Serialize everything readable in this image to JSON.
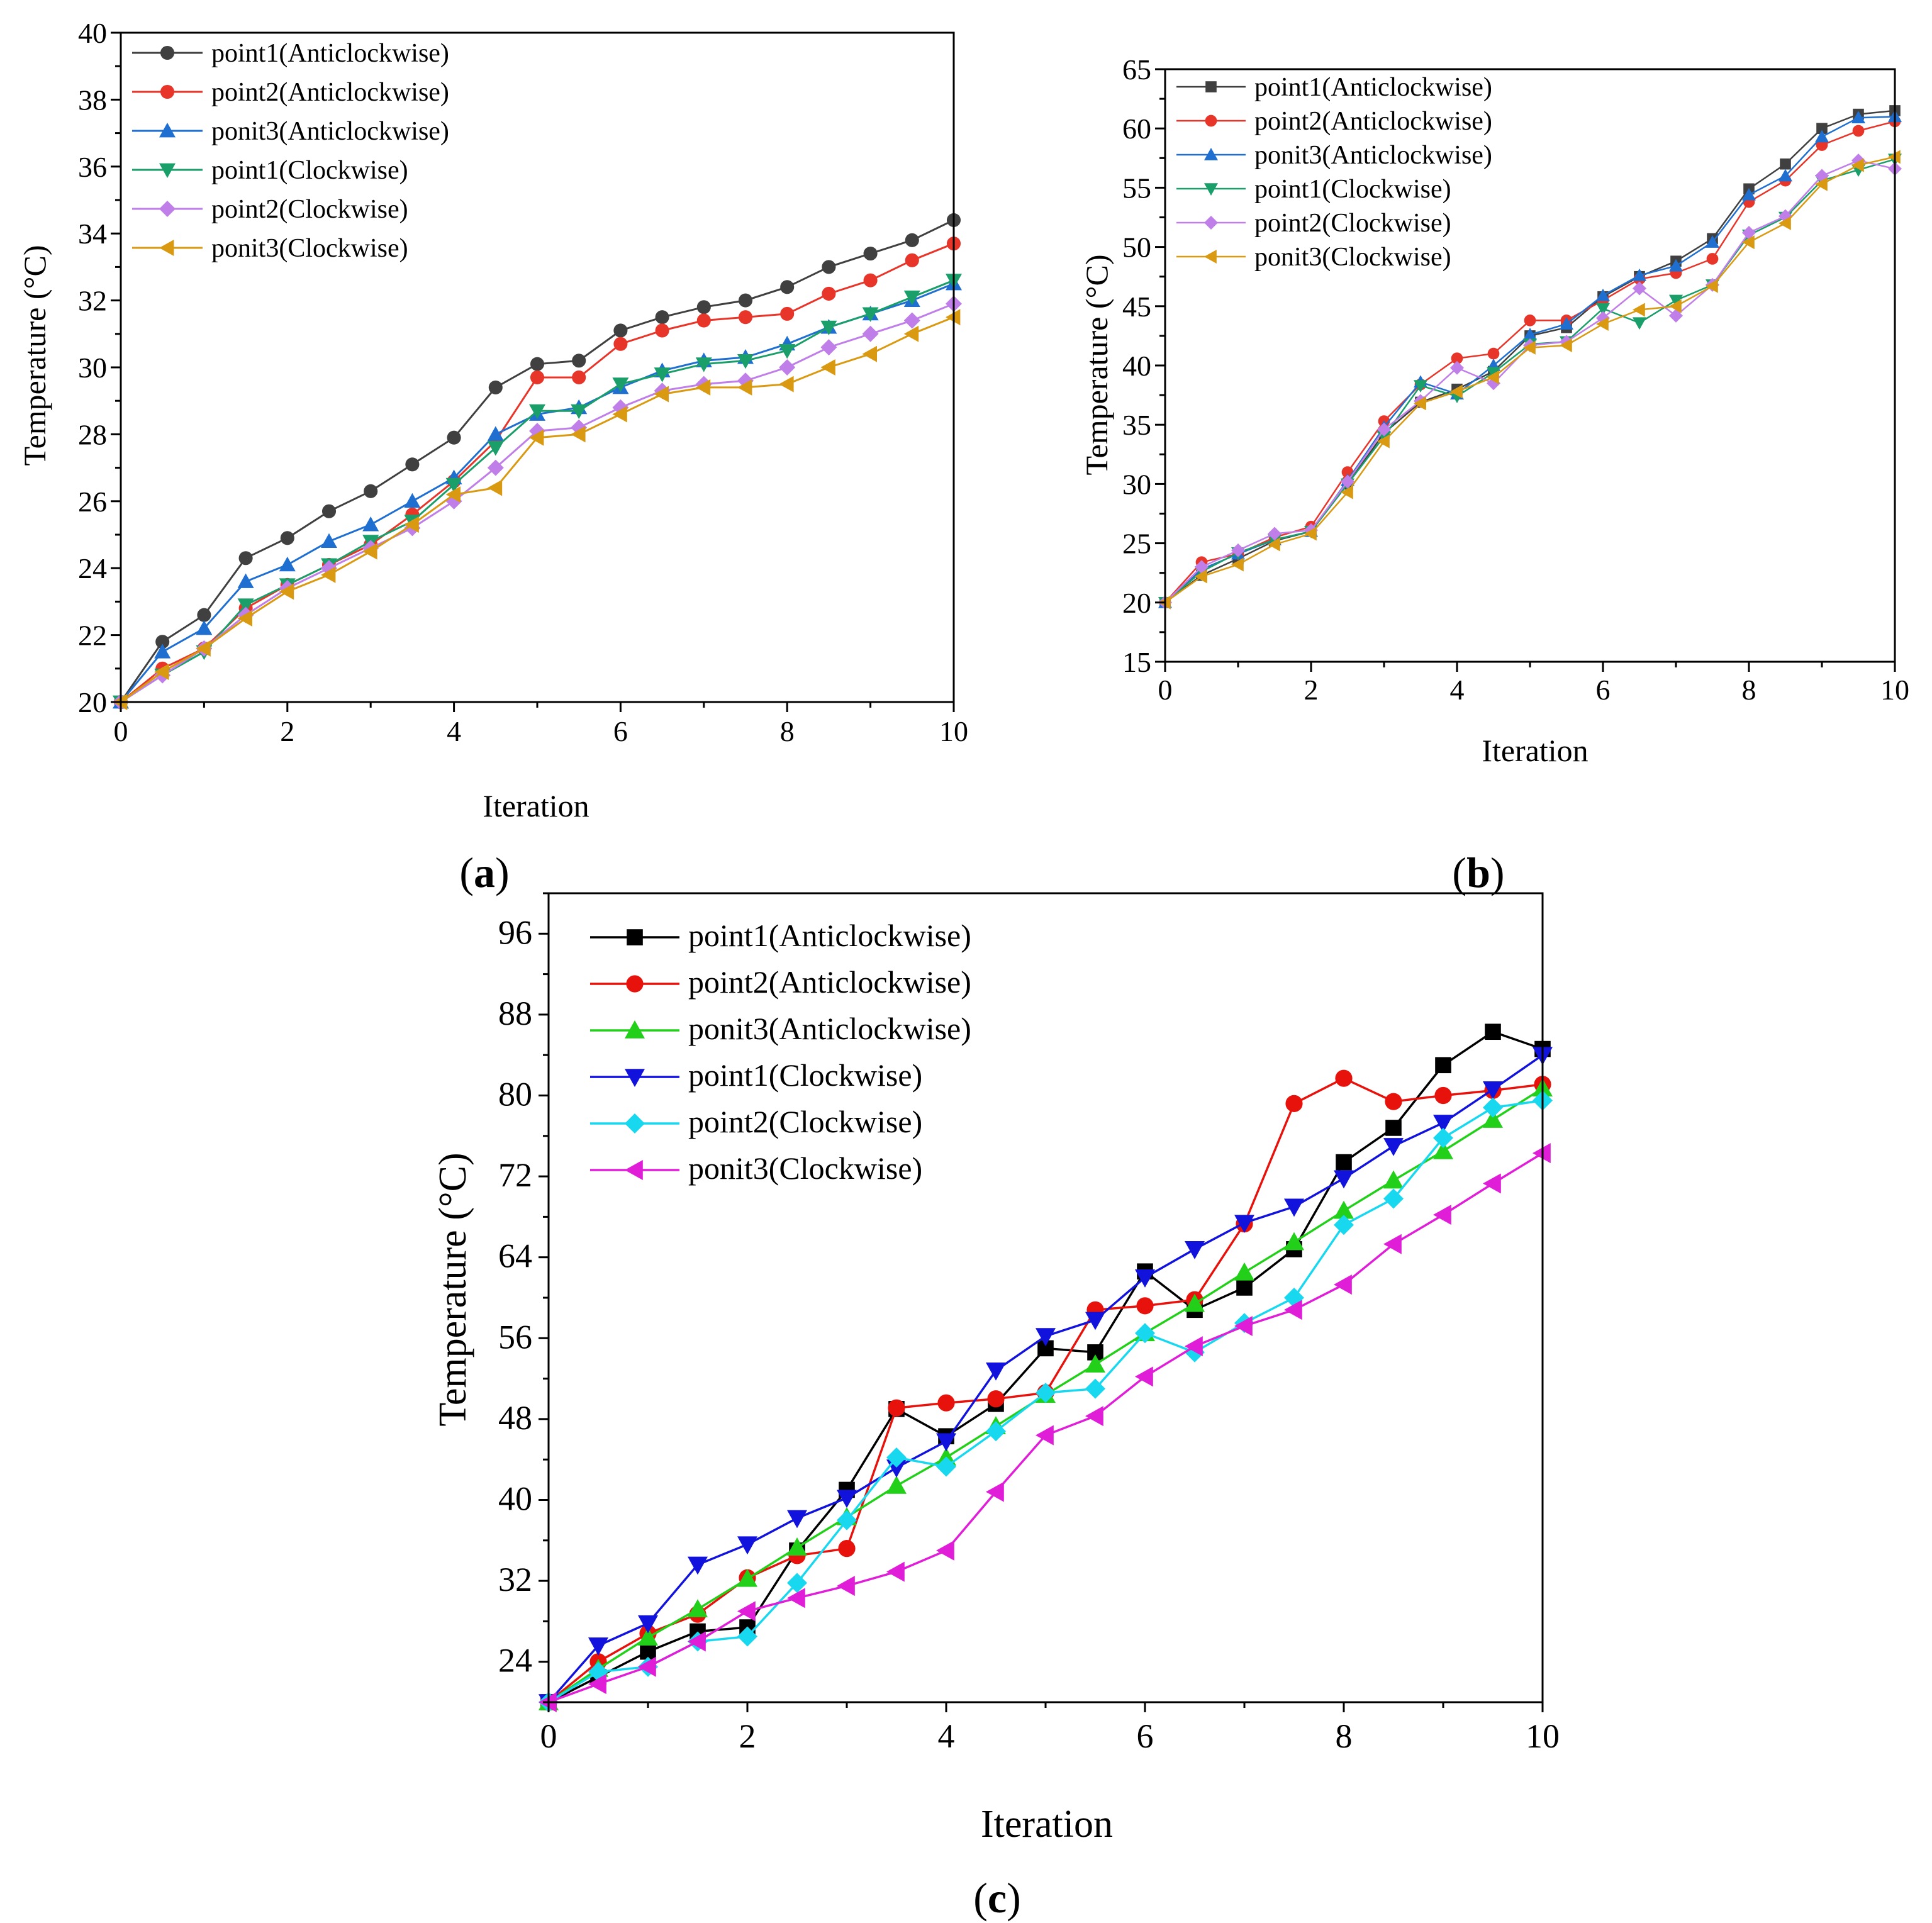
{
  "chart_data": [
    {
      "id": "a",
      "type": "line",
      "caption": {
        "open": "(",
        "letter": "a",
        "close": ")"
      },
      "xlabel": "Iteration",
      "ylabel": "Temperature (°C)",
      "xlim": [
        0,
        10
      ],
      "ylim": [
        20,
        40
      ],
      "xticks": [
        0,
        2,
        4,
        6,
        8,
        10
      ],
      "yticks": [
        20,
        22,
        24,
        26,
        28,
        30,
        32,
        34,
        36,
        38,
        40
      ],
      "legend_position": "top-left",
      "x": [
        0,
        0.5,
        1,
        1.5,
        2,
        2.5,
        3,
        3.5,
        4,
        4.5,
        5,
        5.5,
        6,
        6.5,
        7,
        7.5,
        8,
        8.5,
        9,
        9.5,
        10
      ],
      "series": [
        {
          "name": "point1(Anticlockwise)",
          "color": "#404040",
          "marker": "circle",
          "values": [
            20,
            21.8,
            22.6,
            24.3,
            24.9,
            25.7,
            26.3,
            27.1,
            27.9,
            29.4,
            30.1,
            30.2,
            31.1,
            31.5,
            31.8,
            32.0,
            32.4,
            33.0,
            33.4,
            33.8,
            34.4
          ]
        },
        {
          "name": "point2(Anticlockwise)",
          "color": "#e8352a",
          "marker": "circle",
          "values": [
            20,
            21.0,
            21.6,
            22.8,
            23.5,
            24.1,
            24.7,
            25.6,
            26.6,
            27.8,
            29.7,
            29.7,
            30.7,
            31.1,
            31.4,
            31.5,
            31.6,
            32.2,
            32.6,
            33.2,
            33.7
          ]
        },
        {
          "name": "ponit3(Anticlockwise)",
          "color": "#1f6fd0",
          "marker": "triangle-up",
          "values": [
            20,
            21.5,
            22.2,
            23.6,
            24.1,
            24.8,
            25.3,
            26.0,
            26.7,
            28.0,
            28.6,
            28.8,
            29.4,
            29.9,
            30.2,
            30.3,
            30.7,
            31.2,
            31.6,
            32.0,
            32.5
          ]
        },
        {
          "name": "point1(Clockwise)",
          "color": "#1a9e6a",
          "marker": "triangle-down",
          "values": [
            20,
            20.8,
            21.5,
            22.9,
            23.5,
            24.1,
            24.8,
            25.4,
            26.5,
            27.6,
            28.7,
            28.7,
            29.5,
            29.8,
            30.1,
            30.2,
            30.5,
            31.2,
            31.6,
            32.1,
            32.6
          ]
        },
        {
          "name": "point2(Clockwise)",
          "color": "#c07ee8",
          "marker": "diamond",
          "values": [
            20,
            20.8,
            21.6,
            22.6,
            23.4,
            24.0,
            24.6,
            25.2,
            26.0,
            27.0,
            28.1,
            28.2,
            28.8,
            29.3,
            29.5,
            29.6,
            30.0,
            30.6,
            31.0,
            31.4,
            31.9
          ]
        },
        {
          "name": "ponit3(Clockwise)",
          "color": "#d99a12",
          "marker": "triangle-left",
          "values": [
            20,
            20.9,
            21.6,
            22.5,
            23.3,
            23.8,
            24.5,
            25.3,
            26.2,
            26.4,
            27.9,
            28.0,
            28.6,
            29.2,
            29.4,
            29.4,
            29.5,
            30.0,
            30.4,
            31.0,
            31.5
          ]
        }
      ]
    },
    {
      "id": "b",
      "type": "line",
      "caption": {
        "open": "(",
        "letter": "b",
        "close": ")"
      },
      "xlabel": "Iteration",
      "ylabel": "Temperature (°C)",
      "xlim": [
        0,
        10
      ],
      "ylim": [
        15,
        65
      ],
      "xticks": [
        0,
        2,
        4,
        6,
        8,
        10
      ],
      "yticks": [
        15,
        20,
        25,
        30,
        35,
        40,
        45,
        50,
        55,
        60,
        65
      ],
      "legend_position": "top-left",
      "x": [
        0,
        0.5,
        1,
        1.5,
        2,
        2.5,
        3,
        3.5,
        4,
        4.5,
        5,
        5.5,
        6,
        6.5,
        7,
        7.5,
        8,
        8.5,
        9,
        9.5,
        10
      ],
      "series": [
        {
          "name": "point1(Anticlockwise)",
          "color": "#404040",
          "marker": "square",
          "values": [
            20,
            22.3,
            23.7,
            25.2,
            26.0,
            30.0,
            34.3,
            36.9,
            38.0,
            39.5,
            42.5,
            43.2,
            45.8,
            47.5,
            48.8,
            50.7,
            54.9,
            57.0,
            60.0,
            61.2,
            61.5
          ]
        },
        {
          "name": "point2(Anticlockwise)",
          "color": "#e8352a",
          "marker": "circle",
          "values": [
            20,
            23.4,
            24.1,
            25.5,
            26.4,
            31.0,
            35.3,
            38.4,
            40.6,
            41.0,
            43.8,
            43.8,
            45.5,
            47.3,
            47.8,
            49.0,
            53.8,
            55.6,
            58.6,
            59.8,
            60.6
          ]
        },
        {
          "name": "ponit3(Anticlockwise)",
          "color": "#1f6fd0",
          "marker": "triangle-up",
          "values": [
            20,
            22.8,
            24.1,
            25.3,
            26.0,
            30.3,
            34.8,
            38.6,
            37.6,
            40.0,
            42.6,
            43.5,
            45.9,
            47.6,
            48.4,
            50.4,
            54.4,
            56.0,
            59.3,
            60.9,
            61.0
          ]
        },
        {
          "name": "point1(Clockwise)",
          "color": "#1a9e6a",
          "marker": "triangle-down",
          "values": [
            20,
            22.6,
            24.2,
            25.3,
            26.0,
            30.0,
            34.0,
            38.3,
            37.4,
            39.4,
            41.8,
            42.0,
            44.8,
            43.6,
            45.5,
            46.8,
            51.0,
            52.5,
            55.6,
            56.5,
            57.4
          ]
        },
        {
          "name": "point2(Clockwise)",
          "color": "#c07ee8",
          "marker": "diamond",
          "values": [
            20,
            23.0,
            24.4,
            25.8,
            26.1,
            30.2,
            34.6,
            37.0,
            39.8,
            38.5,
            41.7,
            42.0,
            44.0,
            46.5,
            44.2,
            46.8,
            51.2,
            52.6,
            56.0,
            57.3,
            56.6
          ]
        },
        {
          "name": "ponit3(Clockwise)",
          "color": "#d99a12",
          "marker": "triangle-left",
          "values": [
            20,
            22.2,
            23.2,
            24.9,
            25.8,
            29.3,
            33.6,
            36.8,
            37.8,
            39.0,
            41.5,
            41.7,
            43.5,
            44.7,
            45.0,
            46.7,
            50.4,
            52.0,
            55.3,
            56.9,
            57.6
          ]
        }
      ]
    },
    {
      "id": "c",
      "type": "line",
      "caption": {
        "open": "(",
        "letter": "c",
        "close": ")"
      },
      "xlabel": "Iteration",
      "ylabel": "Temperature (°C)",
      "xlim": [
        0,
        10
      ],
      "ylim": [
        20,
        100
      ],
      "xticks": [
        0,
        2,
        4,
        6,
        8,
        10
      ],
      "yticks": [
        24,
        32,
        40,
        48,
        56,
        64,
        72,
        80,
        88,
        96
      ],
      "legend_position": "top-left",
      "x": [
        0,
        0.5,
        1,
        1.5,
        2,
        2.5,
        3,
        3.5,
        4,
        4.5,
        5,
        5.5,
        6,
        6.5,
        7,
        7.5,
        8,
        8.5,
        9,
        9.5,
        10
      ],
      "series": [
        {
          "name": "point1(Anticlockwise)",
          "color": "#000000",
          "marker": "square",
          "values": [
            20,
            22.5,
            25.0,
            27.0,
            27.4,
            35.0,
            41.0,
            49.0,
            46.3,
            49.5,
            55.0,
            54.6,
            62.6,
            58.8,
            61.0,
            64.8,
            73.4,
            76.8,
            83.0,
            86.3,
            84.6
          ]
        },
        {
          "name": "point2(Anticlockwise)",
          "color": "#e8120c",
          "marker": "circle",
          "values": [
            20,
            24.0,
            26.8,
            28.7,
            32.3,
            34.5,
            35.2,
            49.1,
            49.6,
            50.0,
            50.6,
            58.8,
            59.2,
            59.8,
            67.3,
            79.2,
            81.7,
            79.4,
            80.0,
            80.5,
            81.1
          ]
        },
        {
          "name": "ponit3(Anticlockwise)",
          "color": "#22d01a",
          "marker": "triangle-up",
          "values": [
            20,
            23.3,
            26.4,
            29.2,
            32.2,
            35.3,
            38.3,
            41.4,
            44.2,
            47.3,
            50.4,
            53.4,
            56.5,
            59.4,
            62.5,
            65.5,
            68.6,
            71.6,
            74.5,
            77.6,
            80.7
          ]
        },
        {
          "name": "point1(Clockwise)",
          "color": "#1212dd",
          "marker": "triangle-down",
          "values": [
            20,
            25.6,
            27.8,
            33.6,
            35.6,
            38.2,
            40.2,
            43.2,
            45.8,
            52.8,
            56.2,
            57.8,
            62.0,
            64.8,
            67.4,
            69.0,
            71.8,
            75.0,
            77.3,
            80.6,
            84.0
          ]
        },
        {
          "name": "point2(Clockwise)",
          "color": "#18d8f0",
          "marker": "diamond",
          "values": [
            20,
            23.0,
            23.5,
            26.0,
            26.5,
            31.8,
            38.0,
            44.2,
            43.3,
            46.8,
            50.6,
            51.0,
            56.5,
            54.6,
            57.5,
            60.0,
            67.2,
            69.8,
            75.8,
            78.8,
            79.5
          ]
        },
        {
          "name": "ponit3(Clockwise)",
          "color": "#e01ed8",
          "marker": "triangle-left",
          "values": [
            20,
            21.8,
            23.5,
            26.0,
            29.0,
            30.3,
            31.5,
            32.9,
            35.0,
            40.8,
            46.4,
            48.3,
            52.2,
            55.2,
            57.2,
            58.8,
            61.3,
            65.3,
            68.2,
            71.3,
            74.3
          ]
        }
      ]
    }
  ]
}
